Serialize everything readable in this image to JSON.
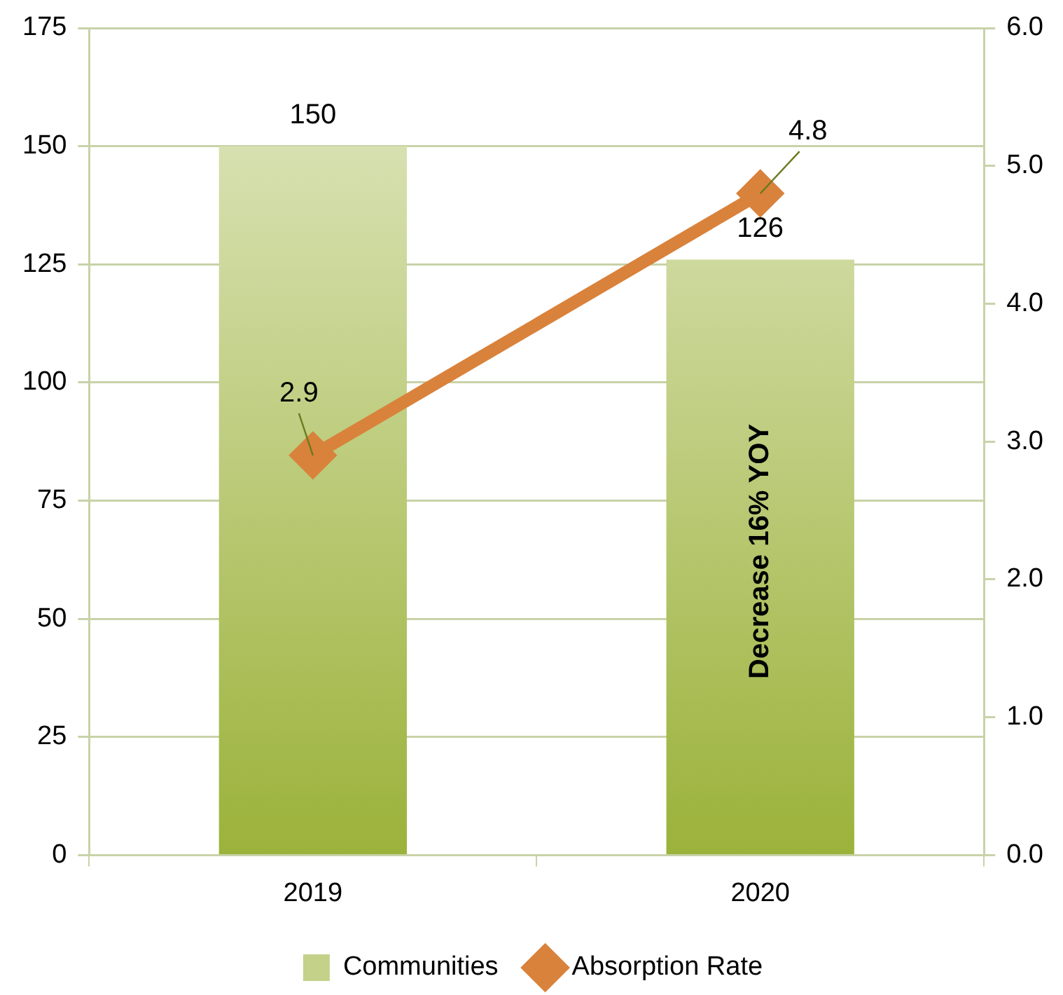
{
  "chart_data": {
    "type": "bar",
    "categories": [
      "2019",
      "2020"
    ],
    "series": [
      {
        "name": "Communities",
        "color": "#9bb23a",
        "values": [
          150,
          126
        ]
      },
      {
        "name": "Absorption Rate",
        "type": "line",
        "axis": "y2",
        "color": "#d9823b",
        "values": [
          2.9,
          4.8
        ]
      }
    ],
    "ylim": [
      0,
      175
    ],
    "yticks": [
      0,
      25,
      50,
      75,
      100,
      125,
      150,
      175
    ],
    "y2lim": [
      0,
      6
    ],
    "y2ticks": [
      {
        "value": 0,
        "label": "0.0"
      },
      {
        "value": 1,
        "label": "1.0"
      },
      {
        "value": 2,
        "label": "2.0"
      },
      {
        "value": 3,
        "label": "3.0"
      },
      {
        "value": 4,
        "label": "4.0"
      },
      {
        "value": 5,
        "label": "5.0"
      },
      {
        "value": 6,
        "label": "6.0"
      }
    ],
    "annotations": [
      "Decrease 16% YOY"
    ],
    "data_labels": true,
    "grid": "y",
    "legend": "bottom",
    "marker": "diamond",
    "line_style": "solid"
  }
}
